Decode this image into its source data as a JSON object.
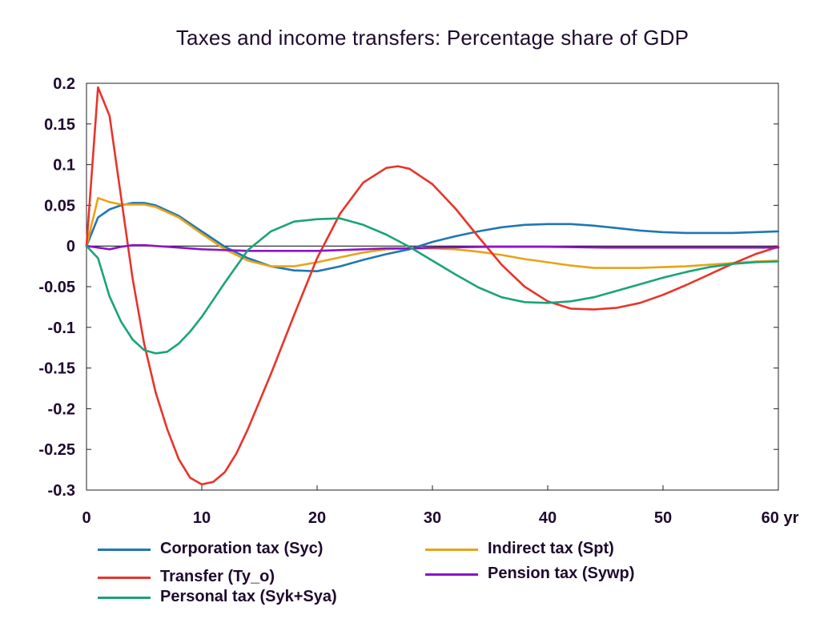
{
  "chart_data": {
    "type": "line",
    "title": "Taxes and income transfers: Percentage share of GDP",
    "xlim": [
      0,
      60
    ],
    "ylim": [
      -0.3,
      0.2
    ],
    "xticks": [
      "0",
      "10",
      "20",
      "30",
      "40",
      "50",
      "60 yr"
    ],
    "yticks": [
      "0.2",
      "0.15",
      "0.1",
      "0.05",
      "0",
      "-0.05",
      "-0.1",
      "-0.15",
      "-0.2",
      "-0.25",
      "-0.3"
    ],
    "grid": false,
    "legend_position": "bottom",
    "series": [
      {
        "name": "Corporation tax (Syc)",
        "color": "#1f77b4",
        "x": [
          0,
          1,
          2,
          3,
          4,
          5,
          6,
          8,
          10,
          12,
          14,
          16,
          18,
          20,
          22,
          24,
          26,
          28,
          30,
          32,
          34,
          36,
          38,
          40,
          42,
          44,
          46,
          48,
          50,
          52,
          54,
          56,
          58,
          60
        ],
        "y": [
          0,
          0.035,
          0.045,
          0.05,
          0.053,
          0.053,
          0.05,
          0.037,
          0.018,
          -0.001,
          -0.015,
          -0.025,
          -0.03,
          -0.031,
          -0.025,
          -0.017,
          -0.01,
          -0.004,
          0.005,
          0.012,
          0.018,
          0.023,
          0.026,
          0.027,
          0.027,
          0.025,
          0.022,
          0.019,
          0.017,
          0.016,
          0.016,
          0.016,
          0.017,
          0.018
        ]
      },
      {
        "name": "Indirect tax (Spt)",
        "color": "#e8a317",
        "x": [
          0,
          1,
          2,
          3,
          4,
          5,
          6,
          8,
          10,
          12,
          14,
          16,
          18,
          20,
          22,
          24,
          26,
          28,
          30,
          32,
          34,
          36,
          38,
          40,
          42,
          44,
          46,
          48,
          50,
          52,
          54,
          56,
          58,
          60
        ],
        "y": [
          0,
          0.059,
          0.054,
          0.051,
          0.051,
          0.051,
          0.048,
          0.035,
          0.015,
          -0.004,
          -0.018,
          -0.025,
          -0.025,
          -0.02,
          -0.014,
          -0.008,
          -0.004,
          -0.003,
          -0.003,
          -0.004,
          -0.007,
          -0.011,
          -0.016,
          -0.02,
          -0.024,
          -0.027,
          -0.027,
          -0.027,
          -0.026,
          -0.025,
          -0.023,
          -0.021,
          -0.019,
          -0.018
        ]
      },
      {
        "name": "Transfer (Ty_o)",
        "color": "#e8342a",
        "x": [
          0,
          1,
          2,
          3,
          4,
          5,
          6,
          7,
          8,
          9,
          10,
          11,
          12,
          13,
          14,
          16,
          18,
          20,
          22,
          24,
          26,
          27,
          28,
          30,
          32,
          34,
          36,
          38,
          40,
          42,
          44,
          46,
          48,
          50,
          52,
          54,
          56,
          58,
          60
        ],
        "y": [
          0,
          0.195,
          0.16,
          0.06,
          -0.04,
          -0.12,
          -0.18,
          -0.225,
          -0.262,
          -0.285,
          -0.293,
          -0.29,
          -0.278,
          -0.255,
          -0.225,
          -0.157,
          -0.085,
          -0.015,
          0.04,
          0.078,
          0.096,
          0.098,
          0.095,
          0.076,
          0.046,
          0.011,
          -0.023,
          -0.05,
          -0.068,
          -0.077,
          -0.078,
          -0.076,
          -0.07,
          -0.06,
          -0.048,
          -0.035,
          -0.022,
          -0.01,
          -0.001
        ]
      },
      {
        "name": "Pension tax (Sywp)",
        "color": "#8a14c8",
        "x": [
          0,
          1,
          2,
          3,
          4,
          5,
          6,
          8,
          10,
          12,
          14,
          16,
          18,
          20,
          22,
          24,
          26,
          28,
          30,
          35,
          40,
          45,
          50,
          55,
          60
        ],
        "y": [
          0,
          -0.002,
          -0.004,
          -0.001,
          0.001,
          0.001,
          0,
          -0.002,
          -0.004,
          -0.005,
          -0.006,
          -0.006,
          -0.006,
          -0.006,
          -0.005,
          -0.004,
          -0.003,
          -0.003,
          -0.002,
          -0.001,
          -0.001,
          -0.002,
          -0.002,
          -0.002,
          -0.002
        ]
      },
      {
        "name": "Personal tax (Syk+Sya)",
        "color": "#1aa37a",
        "x": [
          0,
          1,
          2,
          3,
          4,
          5,
          6,
          7,
          8,
          9,
          10,
          11,
          12,
          14,
          16,
          18,
          20,
          22,
          24,
          26,
          28,
          30,
          32,
          34,
          36,
          38,
          40,
          42,
          44,
          46,
          48,
          50,
          52,
          54,
          56,
          58,
          60
        ],
        "y": [
          0,
          -0.015,
          -0.062,
          -0.093,
          -0.115,
          -0.128,
          -0.132,
          -0.13,
          -0.12,
          -0.105,
          -0.087,
          -0.066,
          -0.045,
          -0.005,
          0.018,
          0.03,
          0.033,
          0.034,
          0.026,
          0.014,
          -0.001,
          -0.018,
          -0.035,
          -0.051,
          -0.063,
          -0.069,
          -0.07,
          -0.068,
          -0.063,
          -0.055,
          -0.047,
          -0.039,
          -0.032,
          -0.026,
          -0.022,
          -0.02,
          -0.019
        ]
      }
    ],
    "legend_labels": [
      "Corporation tax (Syc)",
      "Indirect tax (Spt)",
      "Transfer (Ty_o)",
      "Pension tax (Sywp)",
      "Personal tax (Syk+Sya)"
    ]
  }
}
